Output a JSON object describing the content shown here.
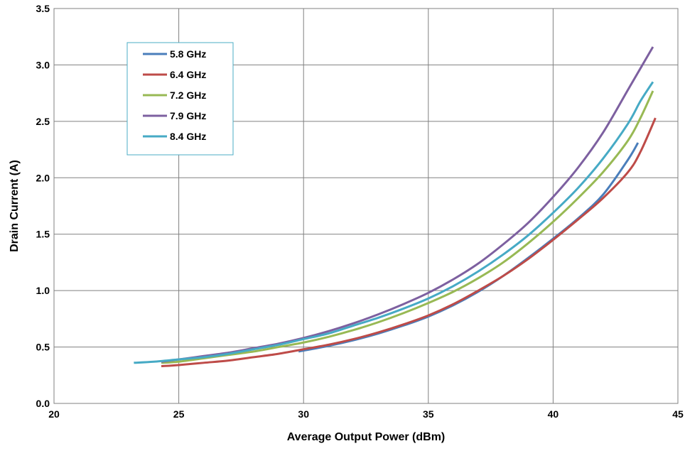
{
  "chart_data": {
    "type": "line",
    "title": "",
    "xlabel": "Average Output Power (dBm)",
    "ylabel": "Drain Current (A)",
    "xlim": [
      20,
      45
    ],
    "ylim": [
      0.0,
      3.5
    ],
    "xticks": [
      20,
      25,
      30,
      35,
      40,
      45
    ],
    "xtick_labels": [
      "20",
      "25",
      "30",
      "35",
      "40",
      "45"
    ],
    "yticks": [
      0.0,
      0.5,
      1.0,
      1.5,
      2.0,
      2.5,
      3.0,
      3.5
    ],
    "ytick_labels": [
      "0.0",
      "0.5",
      "1.0",
      "1.5",
      "2.0",
      "2.5",
      "3.0",
      "3.5"
    ],
    "grid": true,
    "legend_position": "top-left",
    "series": [
      {
        "name": "5.8 GHz",
        "color": "#4a7ebb",
        "x": [
          29.8,
          31,
          32,
          33,
          34,
          35,
          36,
          37,
          38,
          39,
          40,
          41,
          42,
          43,
          43.4
        ],
        "y": [
          0.46,
          0.51,
          0.56,
          0.62,
          0.69,
          0.77,
          0.87,
          0.99,
          1.13,
          1.29,
          1.46,
          1.64,
          1.85,
          2.16,
          2.31
        ]
      },
      {
        "name": "6.4 GHz",
        "color": "#be4b48",
        "x": [
          24.3,
          25,
          26,
          27,
          28,
          29,
          30,
          31,
          32,
          33,
          34,
          35,
          36,
          37,
          38,
          39,
          40,
          41,
          42,
          43,
          43.5,
          44.1
        ],
        "y": [
          0.33,
          0.34,
          0.36,
          0.38,
          0.41,
          0.44,
          0.48,
          0.52,
          0.57,
          0.63,
          0.7,
          0.78,
          0.88,
          1.0,
          1.13,
          1.28,
          1.45,
          1.63,
          1.82,
          2.05,
          2.23,
          2.53
        ]
      },
      {
        "name": "7.2 GHz",
        "color": "#98b954",
        "x": [
          24.3,
          25,
          26,
          27,
          28,
          29,
          30,
          31,
          32,
          33,
          34,
          35,
          36,
          37,
          38,
          39,
          40,
          41,
          42,
          43,
          43.5,
          44.0
        ],
        "y": [
          0.36,
          0.37,
          0.4,
          0.43,
          0.46,
          0.5,
          0.54,
          0.59,
          0.65,
          0.72,
          0.8,
          0.89,
          0.99,
          1.11,
          1.25,
          1.42,
          1.61,
          1.82,
          2.05,
          2.33,
          2.53,
          2.77
        ]
      },
      {
        "name": "7.9 GHz",
        "color": "#7d60a0",
        "x": [
          24.3,
          25,
          26,
          27,
          28,
          29,
          30,
          31,
          32,
          33,
          34,
          35,
          36,
          37,
          38,
          39,
          40,
          41,
          42,
          43,
          43.5,
          44.0
        ],
        "y": [
          0.37,
          0.39,
          0.42,
          0.45,
          0.49,
          0.53,
          0.58,
          0.64,
          0.71,
          0.79,
          0.88,
          0.98,
          1.1,
          1.24,
          1.41,
          1.6,
          1.83,
          2.09,
          2.4,
          2.78,
          2.97,
          3.16
        ]
      },
      {
        "name": "8.4 GHz",
        "color": "#46aac5",
        "x": [
          23.2,
          24,
          25,
          26,
          27,
          28,
          29,
          30,
          31,
          32,
          33,
          34,
          35,
          36,
          37,
          38,
          39,
          40,
          41,
          42,
          43,
          43.5,
          44.0
        ],
        "y": [
          0.36,
          0.37,
          0.39,
          0.41,
          0.44,
          0.48,
          0.52,
          0.57,
          0.62,
          0.69,
          0.76,
          0.84,
          0.93,
          1.04,
          1.17,
          1.32,
          1.49,
          1.69,
          1.91,
          2.17,
          2.48,
          2.68,
          2.85
        ]
      }
    ]
  }
}
